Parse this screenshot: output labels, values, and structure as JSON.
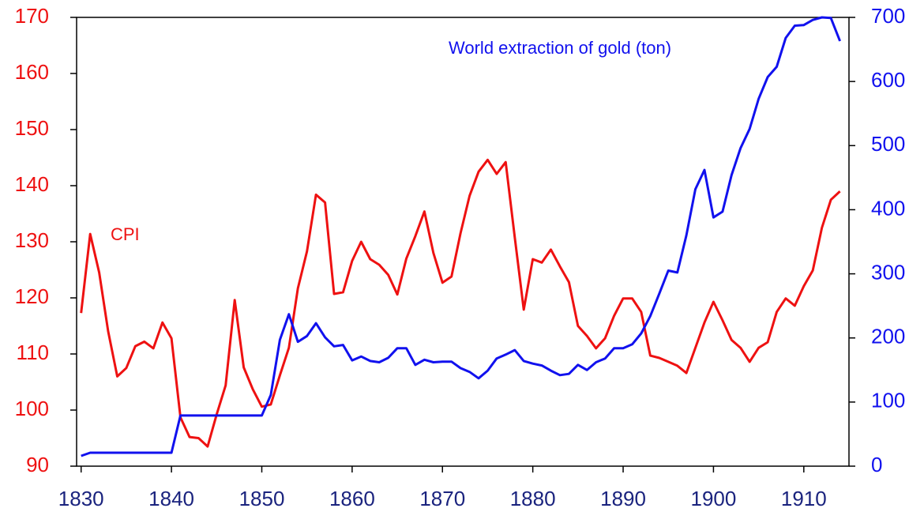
{
  "chart_data": {
    "type": "line",
    "x": [
      1830,
      1831,
      1832,
      1833,
      1834,
      1835,
      1836,
      1837,
      1838,
      1839,
      1840,
      1841,
      1842,
      1843,
      1844,
      1845,
      1846,
      1847,
      1848,
      1849,
      1850,
      1851,
      1852,
      1853,
      1854,
      1855,
      1856,
      1857,
      1858,
      1859,
      1860,
      1861,
      1862,
      1863,
      1864,
      1865,
      1866,
      1867,
      1868,
      1869,
      1870,
      1871,
      1872,
      1873,
      1874,
      1875,
      1876,
      1877,
      1878,
      1879,
      1880,
      1881,
      1882,
      1883,
      1884,
      1885,
      1886,
      1887,
      1888,
      1889,
      1890,
      1891,
      1892,
      1893,
      1894,
      1895,
      1896,
      1897,
      1898,
      1899,
      1900,
      1901,
      1902,
      1903,
      1904,
      1905,
      1906,
      1907,
      1908,
      1909,
      1910,
      1911,
      1912,
      1913,
      1914
    ],
    "series": [
      {
        "name": "CPI",
        "color": "#ee1111",
        "axis": "y",
        "values": [
          117.3,
          131.4,
          124.5,
          114,
          106,
          107.5,
          111.4,
          112.2,
          111,
          115.6,
          112.8,
          98.7,
          95.2,
          95,
          93.5,
          99.2,
          104.4,
          119.6,
          107.6,
          103.7,
          100.6,
          101,
          106.2,
          111.1,
          121.7,
          128.3,
          138.4,
          137,
          120.7,
          121,
          126.6,
          130,
          126.9,
          125.9,
          124.1,
          120.6,
          127,
          131,
          135.4,
          128,
          122.7,
          123.8,
          131.5,
          138.2,
          142.5,
          144.6,
          142.1,
          144.2,
          130.8,
          117.9,
          126.9,
          126.3,
          128.6,
          125.6,
          122.8,
          115,
          113.2,
          111,
          112.8,
          116.8,
          119.9,
          119.9,
          117.5,
          109.7,
          109.3,
          108.6,
          107.9,
          106.6,
          111.1,
          115.6,
          119.3,
          116,
          112.5,
          111.1,
          108.6,
          111.1,
          112.1,
          117.5,
          119.9,
          118.6,
          122.1,
          124.9,
          132.5,
          137.5,
          139
        ]
      },
      {
        "name": "World extraction of gold (ton)",
        "color": "#1111ee",
        "axis": "y2",
        "values": [
          16,
          21,
          21,
          21,
          21,
          21,
          21,
          21,
          21,
          21,
          21,
          79,
          79,
          79,
          79,
          79,
          79,
          79,
          79,
          79,
          79,
          111,
          197,
          237,
          194,
          203,
          223,
          201,
          187,
          189,
          165,
          171,
          164,
          162,
          169,
          184,
          184,
          158,
          166,
          162,
          163,
          163,
          153,
          147,
          137,
          149,
          168,
          174,
          181,
          164,
          160,
          157,
          149,
          142,
          144,
          158,
          150,
          162,
          168,
          184,
          184,
          190,
          207,
          234,
          269,
          305,
          302,
          360,
          432,
          462,
          388,
          397,
          454,
          496,
          526,
          573,
          607,
          623,
          668,
          687,
          688,
          696,
          700,
          699,
          663
        ]
      }
    ],
    "xlim": [
      1829.5,
      1915
    ],
    "xticks": [
      1830,
      1840,
      1850,
      1860,
      1870,
      1880,
      1890,
      1900,
      1910
    ],
    "ylim": [
      90,
      170
    ],
    "yticks": [
      90,
      100,
      110,
      120,
      130,
      140,
      150,
      160,
      170
    ],
    "y2lim": [
      0,
      700
    ],
    "y2ticks": [
      0,
      100,
      200,
      300,
      400,
      500,
      600,
      700
    ],
    "ytick_color": "#ee1111",
    "y2tick_color": "#1111ee",
    "xtick_color": "#1a237e"
  }
}
